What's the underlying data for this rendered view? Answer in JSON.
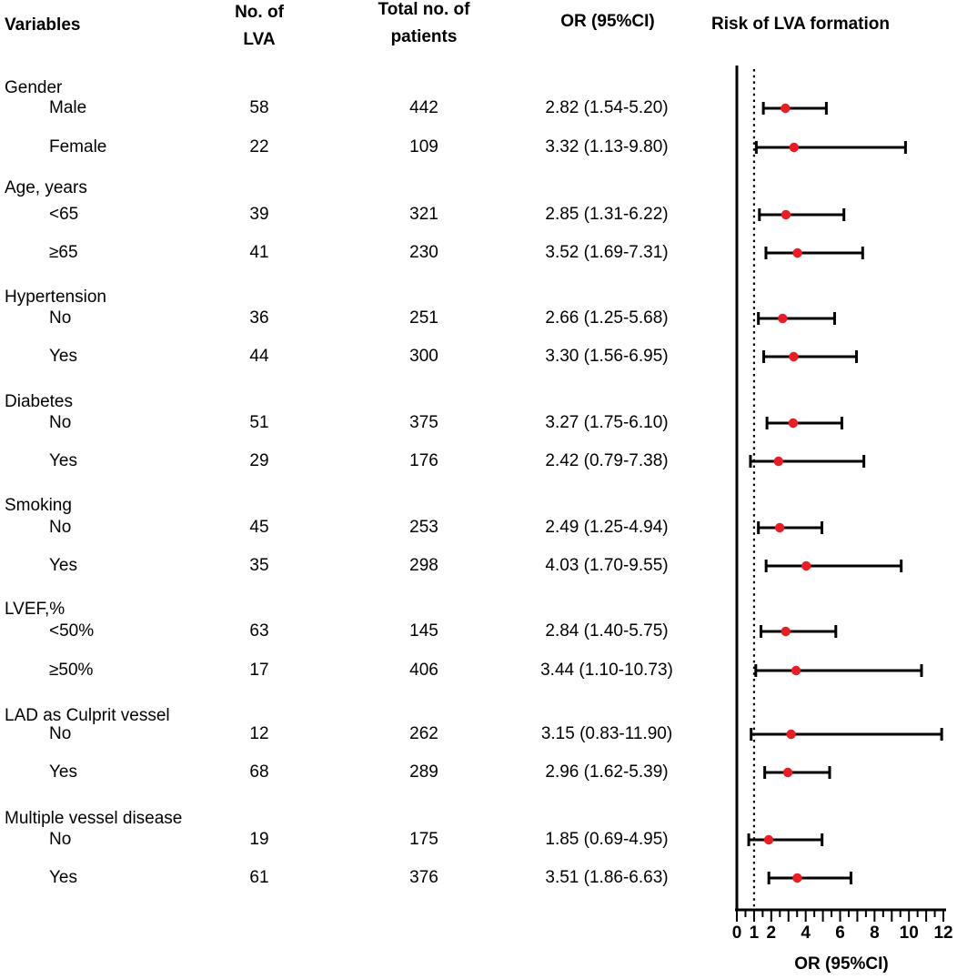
{
  "figure": {
    "columns": {
      "variables": "Variables",
      "no_of_lva_line1": "No. of",
      "no_of_lva_line2": "LVA",
      "total_patients_line1": "Total no. of",
      "total_patients_line2": "patients",
      "or_ci": "OR (95%CI)",
      "plot_title": "Risk of LVA formation"
    },
    "colors": {
      "point": "#ed1c24",
      "line": "#000000"
    }
  },
  "chart_data": {
    "type": "forest",
    "title": "Risk of LVA formation",
    "xlabel": "OR (95%CI)",
    "xlim": [
      0,
      12
    ],
    "x_major_tick_labels": [
      0,
      1,
      2,
      4,
      6,
      8,
      10,
      12
    ],
    "x_minor_tick_step": 0.5,
    "reference_line_or": 1,
    "groups": [
      {
        "label": "Gender",
        "rows": [
          {
            "label": "Male",
            "n_lva": "58",
            "n_total": "442",
            "or_ci_text": "2.82 (1.54-5.20)",
            "or": 2.82,
            "ci_low": 1.54,
            "ci_high": 5.2
          },
          {
            "label": "Female",
            "n_lva": "22",
            "n_total": "109",
            "or_ci_text": "3.32 (1.13-9.80)",
            "or": 3.32,
            "ci_low": 1.13,
            "ci_high": 9.8
          }
        ]
      },
      {
        "label": "Age, years",
        "rows": [
          {
            "label": "<65",
            "n_lva": "39",
            "n_total": "321",
            "or_ci_text": "2.85 (1.31-6.22)",
            "or": 2.85,
            "ci_low": 1.31,
            "ci_high": 6.22
          },
          {
            "label": "≥65",
            "n_lva": "41",
            "n_total": "230",
            "or_ci_text": "3.52 (1.69-7.31)",
            "or": 3.52,
            "ci_low": 1.69,
            "ci_high": 7.31
          }
        ]
      },
      {
        "label": "Hypertension",
        "rows": [
          {
            "label": "No",
            "n_lva": "36",
            "n_total": "251",
            "or_ci_text": "2.66 (1.25-5.68)",
            "or": 2.66,
            "ci_low": 1.25,
            "ci_high": 5.68
          },
          {
            "label": "Yes",
            "n_lva": "44",
            "n_total": "300",
            "or_ci_text": "3.30 (1.56-6.95)",
            "or": 3.3,
            "ci_low": 1.56,
            "ci_high": 6.95
          }
        ]
      },
      {
        "label": "Diabetes",
        "rows": [
          {
            "label": "No",
            "n_lva": "51",
            "n_total": "375",
            "or_ci_text": "3.27 (1.75-6.10)",
            "or": 3.27,
            "ci_low": 1.75,
            "ci_high": 6.1
          },
          {
            "label": "Yes",
            "n_lva": "29",
            "n_total": "176",
            "or_ci_text": "2.42 (0.79-7.38)",
            "or": 2.42,
            "ci_low": 0.79,
            "ci_high": 7.38
          }
        ]
      },
      {
        "label": "Smoking",
        "rows": [
          {
            "label": "No",
            "n_lva": "45",
            "n_total": "253",
            "or_ci_text": "2.49 (1.25-4.94)",
            "or": 2.49,
            "ci_low": 1.25,
            "ci_high": 4.94
          },
          {
            "label": "Yes",
            "n_lva": "35",
            "n_total": "298",
            "or_ci_text": "4.03 (1.70-9.55)",
            "or": 4.03,
            "ci_low": 1.7,
            "ci_high": 9.55
          }
        ]
      },
      {
        "label": "LVEF,%",
        "rows": [
          {
            "label": "<50%",
            "n_lva": "63",
            "n_total": "145",
            "or_ci_text": "2.84 (1.40-5.75)",
            "or": 2.84,
            "ci_low": 1.4,
            "ci_high": 5.75
          },
          {
            "label": "≥50%",
            "n_lva": "17",
            "n_total": "406",
            "or_ci_text": "3.44 (1.10-10.73)",
            "or": 3.44,
            "ci_low": 1.1,
            "ci_high": 10.73
          }
        ]
      },
      {
        "label": "LAD as Culprit vessel",
        "rows": [
          {
            "label": "No",
            "n_lva": "12",
            "n_total": "262",
            "or_ci_text": "3.15 (0.83-11.90)",
            "or": 3.15,
            "ci_low": 0.83,
            "ci_high": 11.9
          },
          {
            "label": "Yes",
            "n_lva": "68",
            "n_total": "289",
            "or_ci_text": "2.96 (1.62-5.39)",
            "or": 2.96,
            "ci_low": 1.62,
            "ci_high": 5.39
          }
        ]
      },
      {
        "label": "Multiple vessel disease",
        "rows": [
          {
            "label": "No",
            "n_lva": "19",
            "n_total": "175",
            "or_ci_text": "1.85 (0.69-4.95)",
            "or": 1.85,
            "ci_low": 0.69,
            "ci_high": 4.95
          },
          {
            "label": "Yes",
            "n_lva": "61",
            "n_total": "376",
            "or_ci_text": "3.51 (1.86-6.63)",
            "or": 3.51,
            "ci_low": 1.86,
            "ci_high": 6.63
          }
        ]
      }
    ]
  }
}
